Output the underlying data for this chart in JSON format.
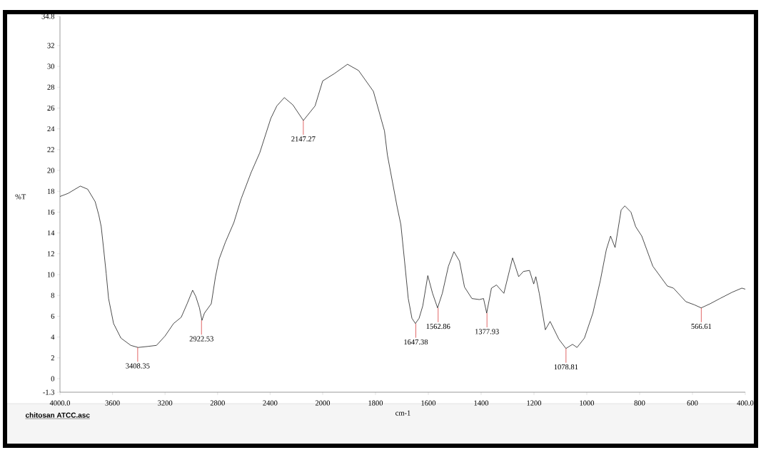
{
  "chart_data": [
    {
      "type": "line",
      "ylabel": "%T",
      "xlim": [
        4000,
        2000
      ],
      "ylim": [
        -1.3,
        34.8
      ],
      "xticks": [
        {
          "value": 4000,
          "label": "4000.0"
        },
        3600,
        3200,
        2800,
        2400,
        2000
      ],
      "yticks": [
        -1.3,
        0,
        2,
        4,
        6,
        8,
        10,
        12,
        14,
        16,
        18,
        20,
        22,
        24,
        26,
        28,
        30,
        32,
        34.8
      ],
      "marker": "none",
      "series": [
        {
          "color": "#000000",
          "x": [
            4000,
            3938,
            3845,
            3789,
            3732,
            3704,
            3686,
            3667,
            3648,
            3630,
            3592,
            3536,
            3461,
            3405,
            3331,
            3265,
            3200,
            3135,
            3077,
            3032,
            2990,
            2966,
            2938,
            2919,
            2900,
            2848,
            2816,
            2788,
            2741,
            2676,
            2620,
            2545,
            2479,
            2395,
            2349,
            2292,
            2227,
            2147,
            2058,
            2000
          ],
          "values": [
            17.5,
            17.8,
            18.5,
            18.2,
            17.0,
            15.7,
            14.6,
            12.4,
            10.1,
            7.7,
            5.3,
            3.9,
            3.2,
            3.0,
            3.1,
            3.2,
            4.1,
            5.3,
            5.9,
            7.2,
            8.5,
            7.9,
            6.8,
            5.6,
            6.3,
            7.2,
            9.8,
            11.5,
            13.1,
            15.0,
            17.3,
            19.8,
            21.7,
            25.0,
            26.2,
            27.0,
            26.3,
            24.8,
            26.2,
            28.6
          ]
        }
      ],
      "annotations": [
        {
          "text": "3408.35",
          "x": 3408.35,
          "y": 3.0
        },
        {
          "text": "2922.53",
          "x": 2922.53,
          "y": 5.6
        },
        {
          "text": "2147.27",
          "x": 2147.27,
          "y": 24.8
        },
        "chitosan ATCC.asc"
      ]
    },
    {
      "type": "line",
      "xlabel": "cm-1",
      "tick_labels": "x",
      "xlim": [
        2000,
        400
      ],
      "ylim": [
        -1.3,
        34.8
      ],
      "xticks": [
        1800,
        1600,
        1400,
        1200,
        1000,
        800,
        600,
        {
          "value": 400,
          "label": "400.0"
        }
      ],
      "marker": "none",
      "series": [
        {
          "color": "#000000",
          "x": [
            2000,
            1956,
            1906,
            1864,
            1808,
            1766,
            1755,
            1718,
            1704,
            1690,
            1676,
            1662,
            1649,
            1635,
            1621,
            1602,
            1584,
            1565,
            1547,
            1524,
            1503,
            1482,
            1463,
            1435,
            1407,
            1391,
            1379,
            1361,
            1342,
            1314,
            1281,
            1258,
            1240,
            1217,
            1201,
            1193,
            1180,
            1157,
            1139,
            1106,
            1079,
            1054,
            1037,
            1009,
            977,
            949,
            926,
            910,
            893,
            870,
            856,
            833,
            815,
            792,
            750,
            695,
            672,
            625,
            593,
            567,
            533,
            496,
            450,
            413,
            400
          ],
          "values": [
            28.6,
            29.3,
            30.2,
            29.6,
            27.6,
            23.8,
            21.5,
            16.5,
            14.8,
            11.3,
            7.7,
            5.8,
            5.3,
            5.8,
            7.0,
            9.9,
            8.2,
            6.8,
            8.2,
            10.8,
            12.2,
            11.3,
            8.8,
            7.7,
            7.6,
            7.7,
            6.3,
            8.7,
            9.0,
            8.2,
            11.6,
            9.8,
            10.3,
            10.4,
            9.1,
            9.8,
            8.2,
            4.7,
            5.5,
            3.8,
            2.9,
            3.3,
            3.0,
            3.9,
            6.3,
            9.4,
            12.4,
            13.7,
            12.6,
            16.2,
            16.6,
            16.0,
            14.6,
            13.7,
            10.8,
            8.9,
            8.7,
            7.4,
            7.1,
            6.8,
            7.2,
            7.7,
            8.3,
            8.7,
            8.6
          ]
        }
      ],
      "annotations": [
        {
          "text": "1647.38",
          "x": 1647.38,
          "y": 5.3
        },
        {
          "text": "1562.86",
          "x": 1562.86,
          "y": 6.8
        },
        {
          "text": "1377.93",
          "x": 1377.93,
          "y": 6.3
        },
        {
          "text": "1078.81",
          "x": 1078.81,
          "y": 2.9
        },
        {
          "text": "566.61",
          "x": 566.61,
          "y": 6.8
        }
      ]
    }
  ]
}
